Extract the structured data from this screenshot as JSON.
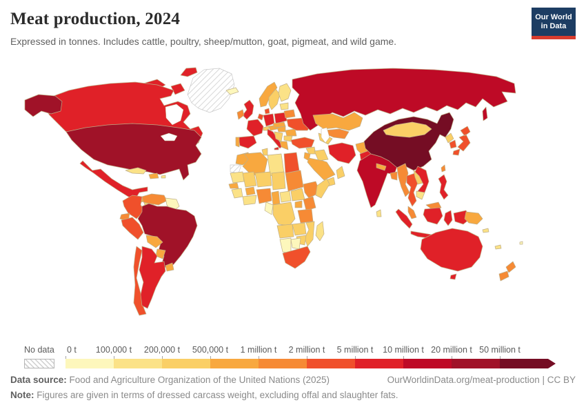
{
  "header": {
    "title": "Meat production, 2024",
    "subtitle": "Expressed in tonnes. Includes cattle, poultry, sheep/mutton, goat, pigmeat, and wild game.",
    "logo": {
      "line1": "Our World",
      "line2": "in Data",
      "bg_color": "#1d3d63",
      "bar_color": "#d93c2e"
    }
  },
  "legend": {
    "no_data_label": "No data"
  },
  "chart_data": {
    "type": "heatmap",
    "subtype": "choropleth world map",
    "title": "Meat production, 2024",
    "subtitle": "Expressed in tonnes. Includes cattle, poultry, sheep/mutton, goat, pigmeat, and wild game.",
    "unit": "tonnes (t)",
    "legend_position": "bottom",
    "bin_labels": [
      "0 t",
      "100,000 t",
      "200,000 t",
      "500,000 t",
      "1 million t",
      "2 million t",
      "5 million t",
      "10 million t",
      "20 million t",
      "50 million t"
    ],
    "bin_colors": [
      "#FDF7BC",
      "#FBE287",
      "#FACF66",
      "#F8A83F",
      "#F68A35",
      "#F0502B",
      "#E02128",
      "#BE0A26",
      "#A01228",
      "#750D24"
    ],
    "no_data_style": "gray diagonal hatching",
    "countries": {
      "greenland": -1,
      "western-sahara": -1,
      "canada": 6,
      "united-states": 8,
      "mexico": 6,
      "guatemala": 3,
      "honduras": 2,
      "nicaragua": 2,
      "costa-rica": 1,
      "panama": 2,
      "cuba": 1,
      "hispaniola": 3,
      "puerto-rico": 1,
      "colombia": 5,
      "venezuela": 4,
      "guyana-suriname": 0,
      "ecuador": 4,
      "peru": 5,
      "brazil": 8,
      "bolivia": 3,
      "paraguay": 3,
      "uruguay": 3,
      "argentina": 6,
      "chile": 5,
      "iceland": 0,
      "united-kingdom": 6,
      "ireland": 4,
      "norway": 3,
      "sweden": 2,
      "finland": 1,
      "denmark": 5,
      "germany": 6,
      "benelux": 5,
      "france": 6,
      "spain": 6,
      "portugal": 3,
      "italy": 6,
      "switzerland": 2,
      "austria": 3,
      "poland": 6,
      "czechia-slovakia": 3,
      "hungary": 3,
      "romania": 3,
      "balkans": 2,
      "bulgaria": 2,
      "greece": 3,
      "ukraine": 5,
      "belarus": 4,
      "baltics": 1,
      "russia": 7,
      "kazakhstan": 3,
      "uzbekistan": 4,
      "turkmenistan": 2,
      "turkey": 5,
      "syria": 2,
      "iraq": 2,
      "iran": 6,
      "afghanistan": 3,
      "pakistan": 6,
      "saudi-arabia": 3,
      "yemen": 2,
      "oman": 2,
      "jordan-israel": 3,
      "india": 7,
      "nepal": 3,
      "bangladesh": 4,
      "sri-lanka": 1,
      "myanmar": 4,
      "thailand": 5,
      "laos": 2,
      "vietnam": 6,
      "cambodia": 1,
      "malaysia": 4,
      "indonesia": 6,
      "papua-new-guinea": 3,
      "philippines": 6,
      "china": 9,
      "mongolia": 2,
      "north-korea": 2,
      "south-korea": 5,
      "japan": 5,
      "taiwan": 4,
      "morocco": 3,
      "algeria": 3,
      "tunisia": 2,
      "libya": 1,
      "egypt": 5,
      "mauritania": 1,
      "mali": 2,
      "niger": 2,
      "chad": 2,
      "sudan": 4,
      "senegal": 3,
      "guinea-region": 1,
      "burkina-faso": 3,
      "ivory-ghana": 1,
      "nigeria": 4,
      "cameroon": 3,
      "central-african-republic": 1,
      "south-sudan": 2,
      "ethiopia": 4,
      "somalia": 2,
      "uganda": 3,
      "kenya": 4,
      "drc": 2,
      "congo-gabon": 0,
      "tanzania": 4,
      "angola": 2,
      "zambia": 2,
      "mozambique": 2,
      "zimbabwe": 2,
      "botswana": 0,
      "namibia": 0,
      "south-africa": 5,
      "madagascar": 1,
      "australia": 6,
      "new-zealand": 4,
      "new-caledonia": 1,
      "solomon-islands": 1,
      "fiji": 0
    }
  },
  "footer": {
    "source_label": "Data source:",
    "source_text": " Food and Agriculture Organization of the United Nations (2025)",
    "link_text": "OurWorldinData.org/meat-production | CC BY",
    "note_label": "Note:",
    "note_text": " Figures are given in terms of dressed carcass weight, excluding offal and slaughter fats."
  }
}
